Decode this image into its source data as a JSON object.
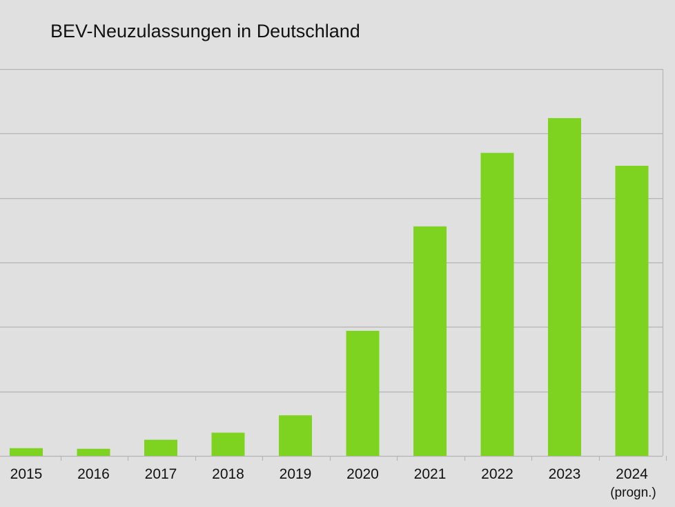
{
  "chart_data": {
    "type": "bar",
    "title": "BEV-Neuzulassungen in Deutschland",
    "xlabel": "",
    "ylabel": "",
    "categories": [
      "2015",
      "2016",
      "2017",
      "2018",
      "2019",
      "2020",
      "2021",
      "2022",
      "2023",
      "2024"
    ],
    "category_sublabels": [
      "",
      "",
      "",
      "",
      "",
      "",
      "",
      "",
      "",
      "(progn.)"
    ],
    "values": [
      12,
      11,
      25,
      36,
      63,
      194,
      356,
      470,
      524,
      450
    ],
    "ylim": [
      0,
      600
    ],
    "y_tick_step": 100,
    "grid": true,
    "bar_color": "#7ed321",
    "gridline_color": "#b4b4b4"
  }
}
